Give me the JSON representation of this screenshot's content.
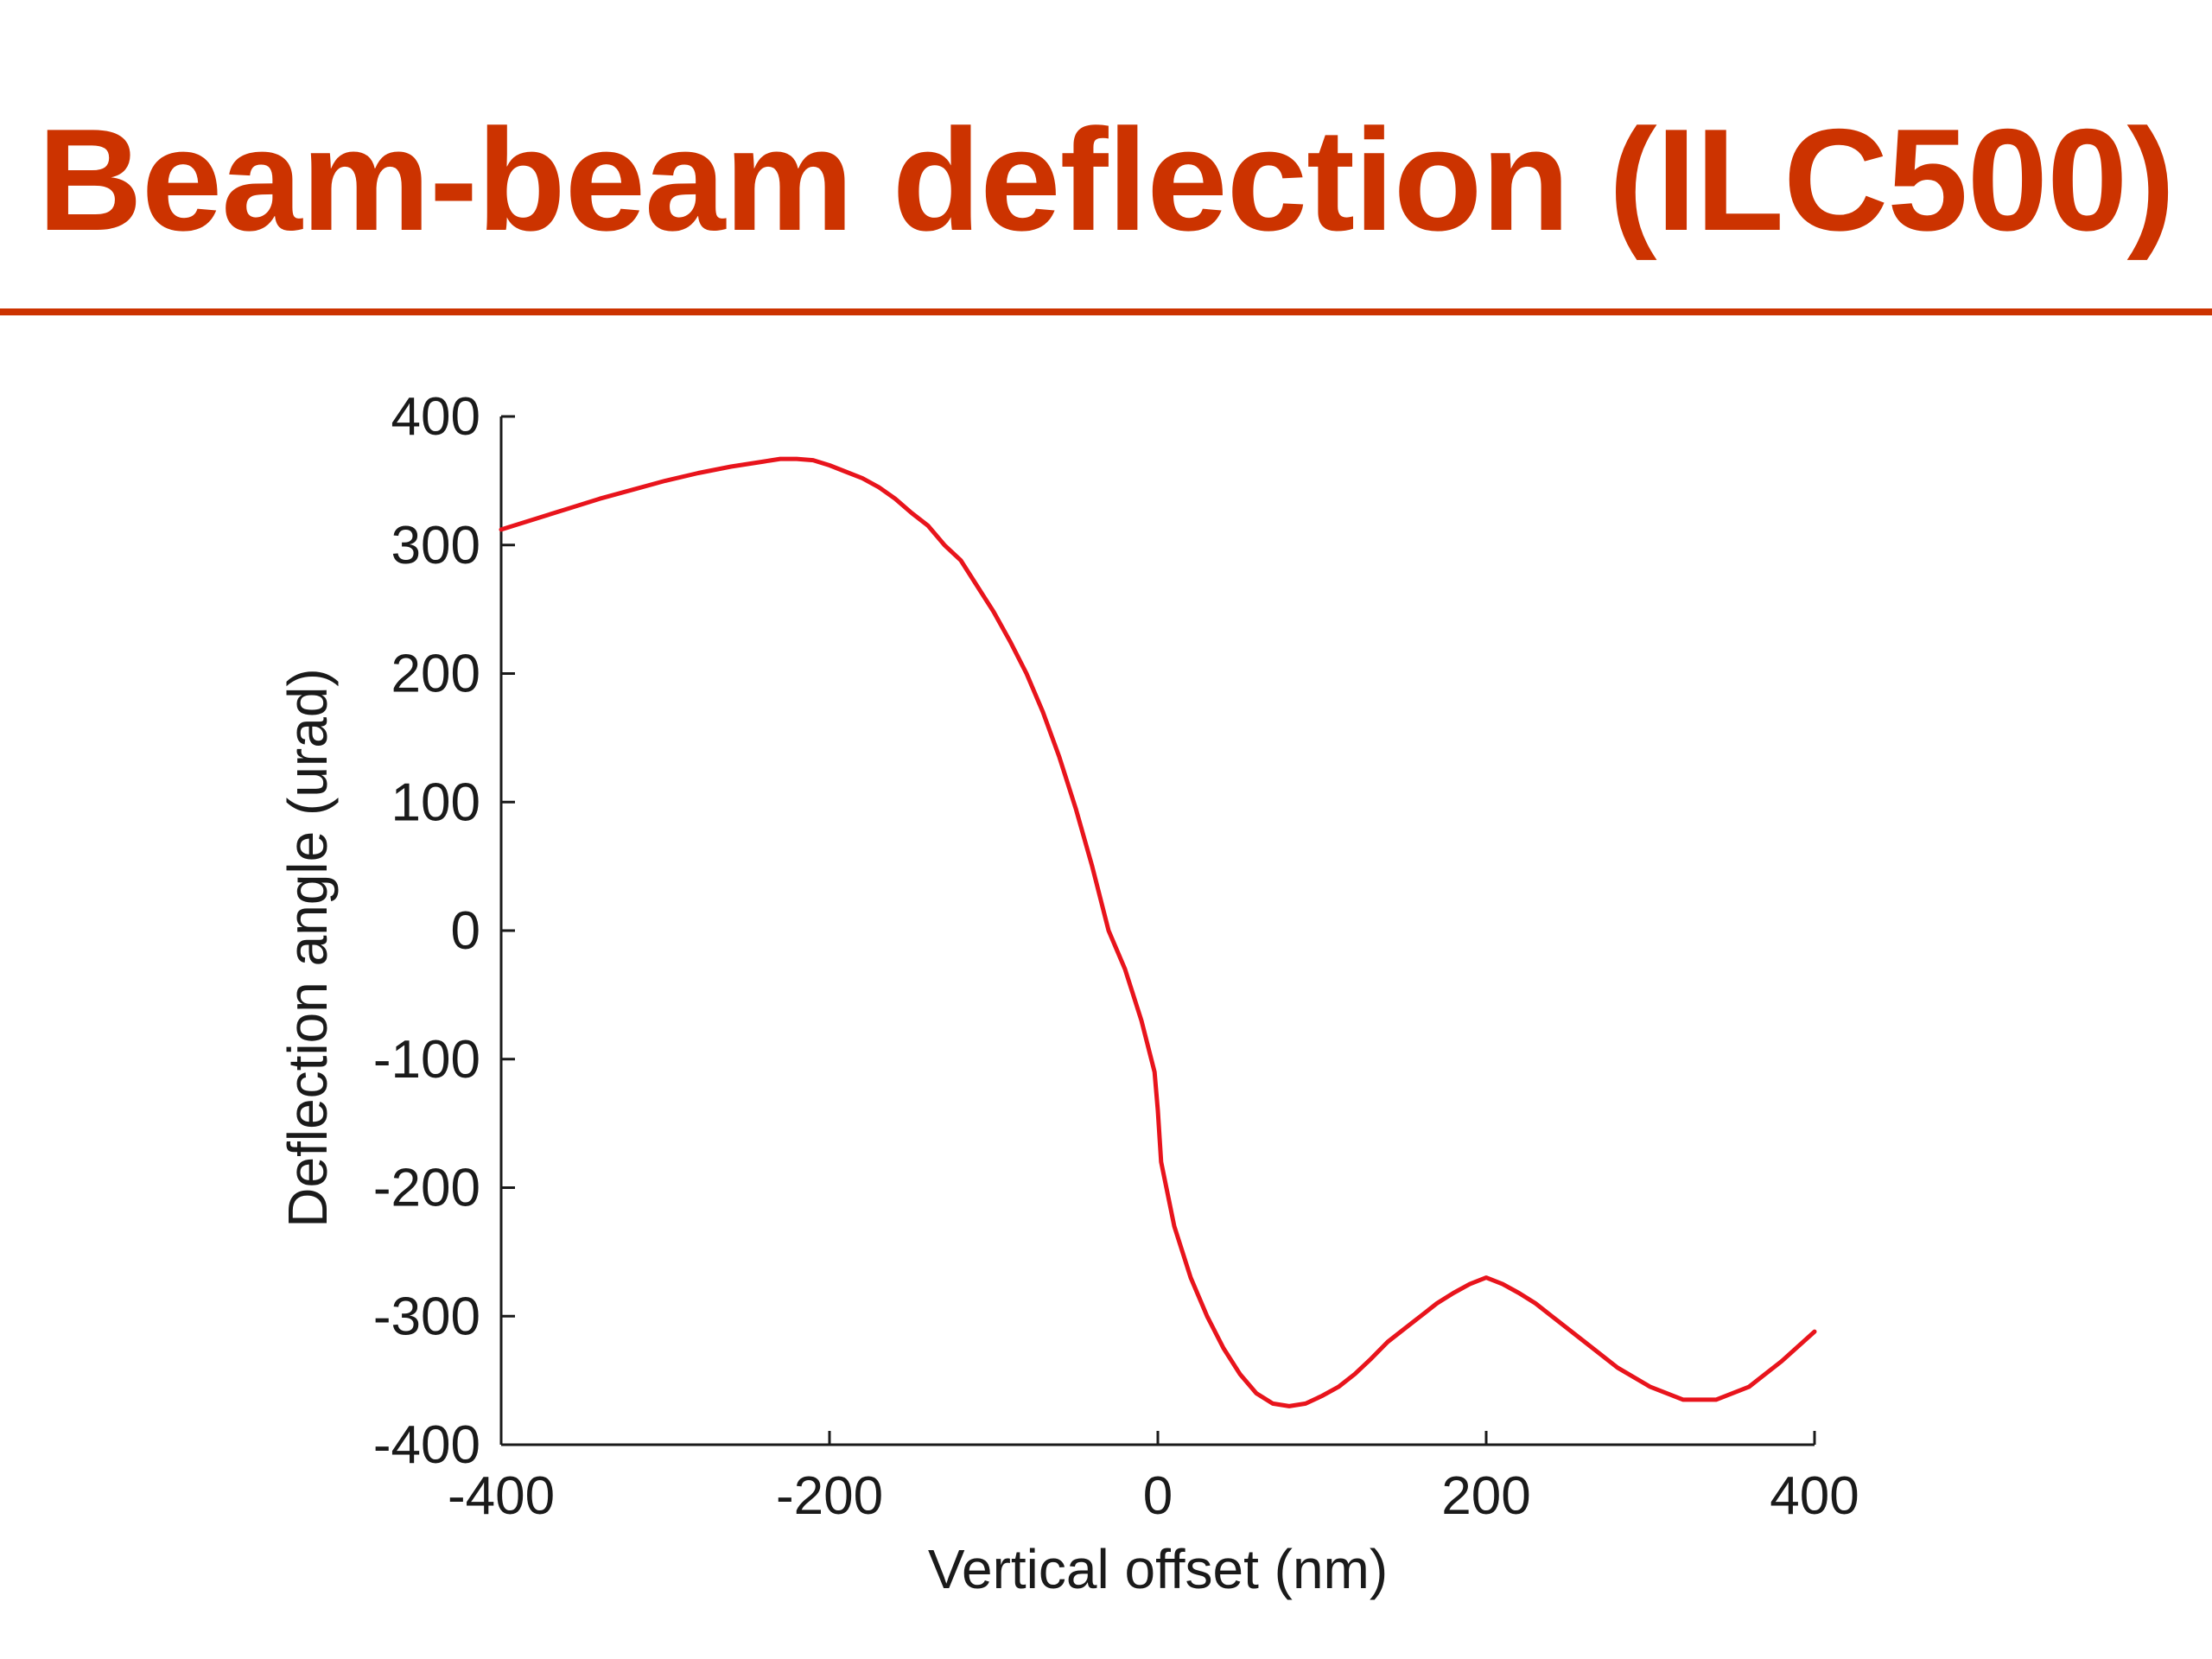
{
  "slide": {
    "title": "Beam-beam deflection (ILC500)",
    "title_color": "#cc3300",
    "rule_color": "#cc3300"
  },
  "chart_data": {
    "type": "line",
    "title": "",
    "xlabel": "Vertical offset (nm)",
    "ylabel": "Deflection angle (urad)",
    "xlim": [
      -400,
      400
    ],
    "ylim": [
      -400,
      400
    ],
    "xticks": [
      -400,
      -200,
      0,
      200,
      400
    ],
    "yticks": [
      -400,
      -300,
      -200,
      -100,
      0,
      100,
      200,
      300,
      400
    ],
    "grid": false,
    "legend": "none",
    "series": [
      {
        "color": "#e8141c",
        "x": [
          -400,
          -380,
          -360,
          -340,
          -320,
          -300,
          -280,
          -260,
          -240,
          -230,
          -220,
          -210,
          -200,
          -190,
          -180,
          -170,
          -160,
          -150,
          -140,
          -130,
          -120,
          -110,
          -100,
          -90,
          -80,
          -70,
          -60,
          -50,
          -40,
          -30,
          -20,
          -10,
          -2,
          0,
          2,
          10,
          20,
          30,
          40,
          50,
          60,
          70,
          80,
          90,
          100,
          110,
          120,
          130,
          140,
          150,
          160,
          170,
          180,
          190,
          200,
          210,
          220,
          230,
          240,
          260,
          280,
          300,
          320,
          340,
          360,
          380,
          400
        ],
        "y": [
          312,
          320,
          328,
          336,
          343,
          350,
          356,
          361,
          365,
          367,
          367,
          366,
          362,
          357,
          352,
          345,
          336,
          325,
          315,
          300,
          288,
          268,
          248,
          225,
          200,
          170,
          135,
          95,
          50,
          0,
          -30,
          -70,
          -110,
          -140,
          -180,
          -230,
          -270,
          -300,
          -325,
          -345,
          -360,
          -368,
          -370,
          -368,
          -362,
          -355,
          -345,
          -333,
          -320,
          -310,
          -300,
          -290,
          -282,
          -275,
          -270,
          -275,
          -282,
          -290,
          -300,
          -320,
          -340,
          -355,
          -365,
          -365,
          -355,
          -335,
          -312
        ]
      }
    ]
  }
}
